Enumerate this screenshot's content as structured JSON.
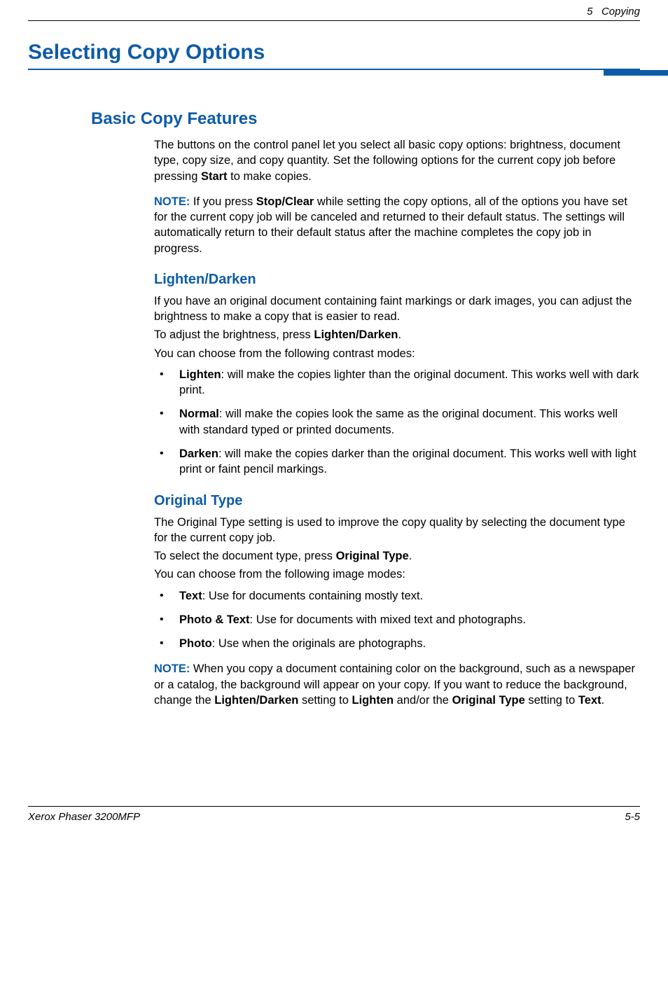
{
  "header": {
    "chapter_num": "5",
    "chapter_title": "Copying"
  },
  "title": "Selecting Copy Options",
  "colors": {
    "accent": "#0d5ba8",
    "text": "#000000",
    "background": "#ffffff",
    "rule": "#000000"
  },
  "section": {
    "heading": "Basic Copy Features",
    "intro_pre": "The buttons on the control panel let you select all basic copy options: brightness, document type, copy size, and copy quantity. Set the following options for the current copy job before pressing ",
    "intro_bold": "Start",
    "intro_post": " to make copies.",
    "note1": {
      "label": "NOTE: ",
      "pre": "If you press ",
      "bold": "Stop/Clear",
      "post": " while setting the copy options, all of the options you have set for the current copy job will be canceled and returned to their default status. The settings will automatically return to their default status after the machine completes the copy job in progress."
    },
    "sub1": {
      "heading": "Lighten/Darken",
      "p1": "If you have an original document containing faint markings or dark images, you can adjust the brightness to make a copy that is easier to read.",
      "p2_pre": "To adjust the brightness, press ",
      "p2_bold": "Lighten/Darken",
      "p2_post": ".",
      "p3": "You can choose from the following contrast modes:",
      "items": [
        {
          "b": "Lighten",
          "t": ": will make the copies lighter than the original document. This works well with dark print."
        },
        {
          "b": "Normal",
          "t": ": will make the copies look the same as the original document. This works well with standard typed or printed documents."
        },
        {
          "b": "Darken",
          "t": ": will make the copies darker than the original document. This works well with light print or faint pencil markings."
        }
      ]
    },
    "sub2": {
      "heading": "Original Type",
      "p1": "The Original Type setting is used to improve the copy quality by selecting the document type for the current copy job.",
      "p2_pre": "To select the document type, press ",
      "p2_bold": "Original Type",
      "p2_post": ".",
      "p3": "You can choose from the following image modes:",
      "items": [
        {
          "b": "Text",
          "t": ": Use for documents containing mostly text."
        },
        {
          "b": "Photo & Text",
          "t": ": Use for documents with mixed text and photographs."
        },
        {
          "b": "Photo",
          "t": ": Use when the originals are photographs."
        }
      ],
      "note": {
        "label": "NOTE: ",
        "pre": "When you copy a document containing color on the background, such as a newspaper or a catalog, the background will appear on your copy. If you want to reduce the background, change the ",
        "b1": "Lighten/Darken",
        "mid1": " setting to ",
        "b2": "Lighten",
        "mid2": " and/or the ",
        "b3": "Original Type",
        "mid3": " setting to ",
        "b4": "Text",
        "post": "."
      }
    }
  },
  "footer": {
    "left": "Xerox Phaser 3200MFP",
    "right": "5-5"
  }
}
